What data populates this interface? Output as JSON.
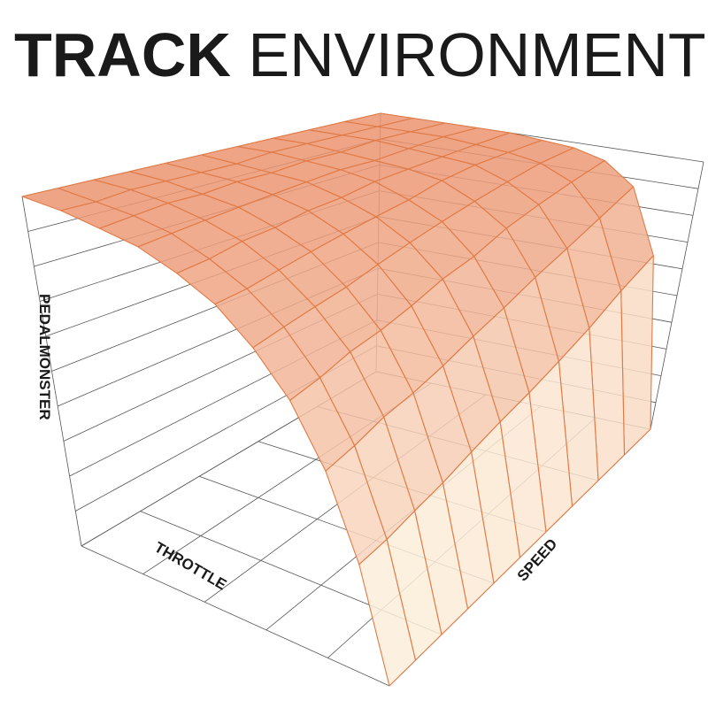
{
  "title": {
    "bold": "TRACK",
    "regular": "ENVIRONMENT"
  },
  "chart_data": {
    "type": "surface",
    "title": "TRACK ENVIRONMENT",
    "xlabel": "THROTTLE",
    "ylabel": "SPEED",
    "zlabel": "PEDALMONSTER",
    "grid": true,
    "colors": {
      "low": "#fffbea",
      "high": "#eb9470",
      "mesh": "#e07a45",
      "axes": "#555555"
    },
    "throttle": [
      0,
      10,
      20,
      30,
      40,
      50,
      60,
      70,
      80,
      90,
      100
    ],
    "speed": [
      0,
      10,
      20,
      30,
      40,
      50,
      60,
      70,
      80,
      90,
      100
    ],
    "z_by_speed": [
      [
        0,
        26,
        46,
        61,
        72,
        81,
        87,
        92,
        95,
        98,
        100
      ],
      [
        0,
        27,
        48,
        63,
        74,
        82,
        88,
        93,
        96,
        98,
        100
      ],
      [
        0,
        29,
        51,
        66,
        76,
        84,
        90,
        94,
        97,
        99,
        100
      ],
      [
        0,
        31,
        53,
        68,
        78,
        86,
        91,
        95,
        97,
        99,
        100
      ],
      [
        0,
        34,
        56,
        71,
        81,
        88,
        93,
        96,
        98,
        99,
        100
      ],
      [
        0,
        37,
        60,
        75,
        84,
        90,
        94,
        97,
        98,
        99,
        100
      ],
      [
        0,
        40,
        64,
        78,
        87,
        92,
        96,
        98,
        99,
        100,
        100
      ],
      [
        0,
        44,
        69,
        83,
        90,
        95,
        97,
        98,
        99,
        100,
        100
      ],
      [
        0,
        49,
        74,
        87,
        93,
        97,
        98,
        99,
        100,
        100,
        100
      ],
      [
        0,
        56,
        80,
        91,
        96,
        98,
        99,
        100,
        100,
        100,
        100
      ],
      [
        0,
        63,
        87,
        95,
        98,
        99,
        100,
        100,
        100,
        100,
        100
      ]
    ],
    "zlim": [
      0,
      100
    ]
  }
}
